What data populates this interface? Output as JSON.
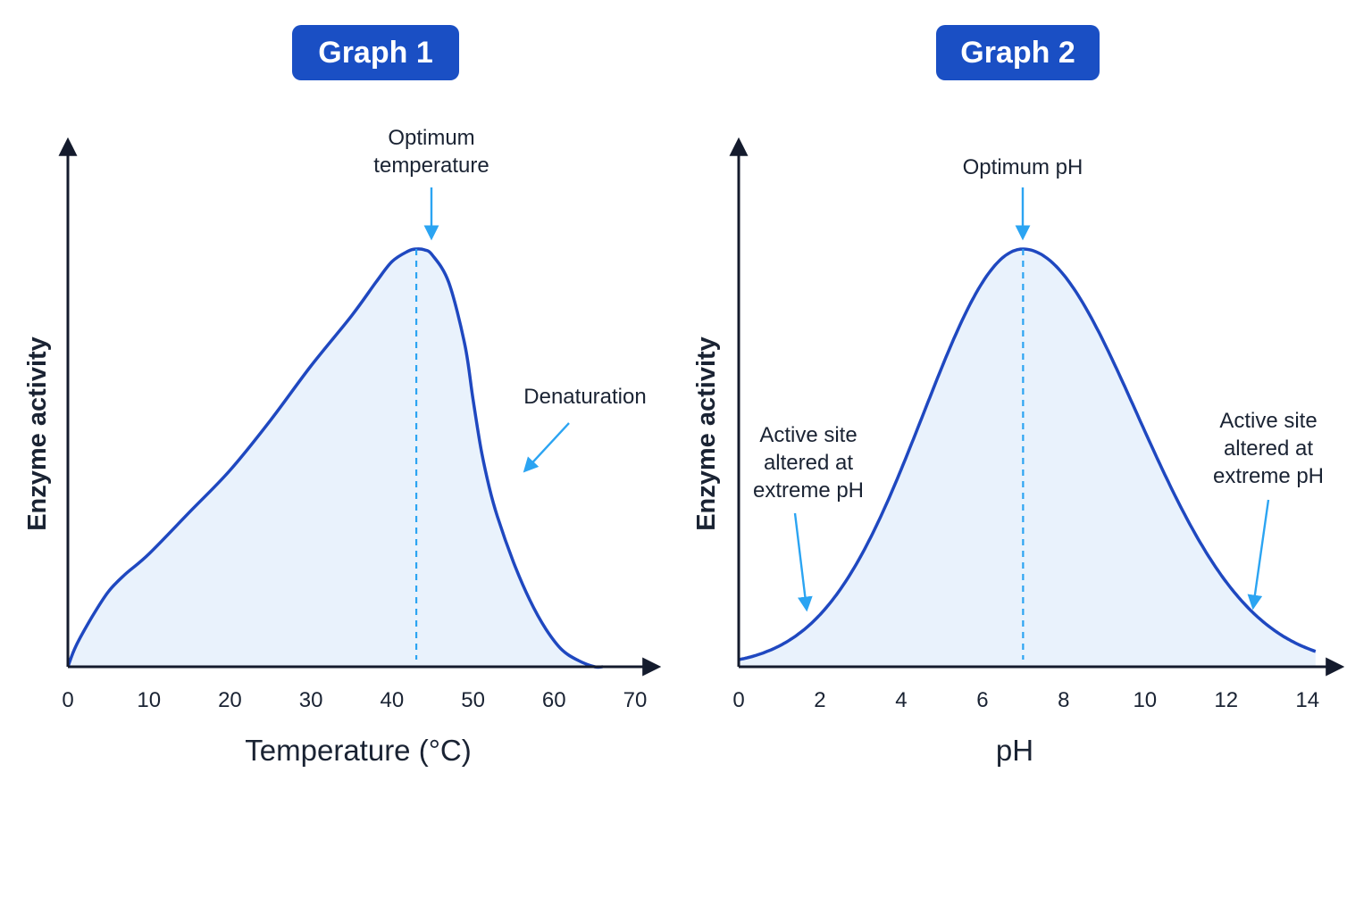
{
  "colors": {
    "badge": "#1a4fc4",
    "curve": "#1f48c0",
    "fill": "#e9f2fc",
    "marker": "#2ba4f2",
    "axis": "#141b2d"
  },
  "chart_data": [
    {
      "type": "area",
      "title": "Graph 1",
      "xlabel": "Temperature (°C)",
      "ylabel": "Enzyme activity",
      "xlim": [
        0,
        70
      ],
      "ylim": [
        0,
        1.15
      ],
      "x_ticks": [
        0,
        10,
        20,
        30,
        40,
        50,
        60,
        70
      ],
      "x": [
        0,
        1,
        3,
        5,
        7,
        10,
        15,
        20,
        25,
        30,
        35,
        38,
        40,
        42,
        43,
        44,
        45,
        47,
        49,
        50,
        51,
        52,
        53,
        55,
        57,
        59,
        61,
        63,
        65,
        66
      ],
      "y": [
        0.0,
        0.05,
        0.12,
        0.18,
        0.22,
        0.27,
        0.37,
        0.47,
        0.59,
        0.72,
        0.84,
        0.92,
        0.97,
        0.995,
        1.0,
        0.998,
        0.985,
        0.92,
        0.77,
        0.64,
        0.52,
        0.43,
        0.36,
        0.25,
        0.16,
        0.09,
        0.04,
        0.015,
        0.0,
        0.0
      ],
      "optimum_x": 43,
      "annotations": [
        {
          "label": "Optimum temperature",
          "lines": [
            "Optimum",
            "temperature"
          ]
        },
        {
          "label": "Denaturation",
          "lines": [
            "Denaturation"
          ]
        }
      ]
    },
    {
      "type": "area",
      "title": "Graph 2",
      "xlabel": "pH",
      "ylabel": "Enzyme activity",
      "xlim": [
        0,
        14.6
      ],
      "ylim": [
        0,
        1.15
      ],
      "x_ticks": [
        0,
        2,
        4,
        6,
        8,
        10,
        12,
        14
      ],
      "optimum_x": 7,
      "curve": {
        "shape": "gaussian",
        "mean": 7,
        "sd_left": 2.45,
        "sd_right": 2.8,
        "end_x": 14.2
      },
      "annotations": [
        {
          "label": "Optimum pH",
          "lines": [
            "Optimum pH"
          ]
        },
        {
          "label": "Active site altered at extreme pH (low)",
          "lines": [
            "Active site",
            "altered at",
            "extreme pH"
          ]
        },
        {
          "label": "Active site altered at extreme pH (high)",
          "lines": [
            "Active site",
            "altered at",
            "extreme pH"
          ]
        }
      ]
    }
  ]
}
